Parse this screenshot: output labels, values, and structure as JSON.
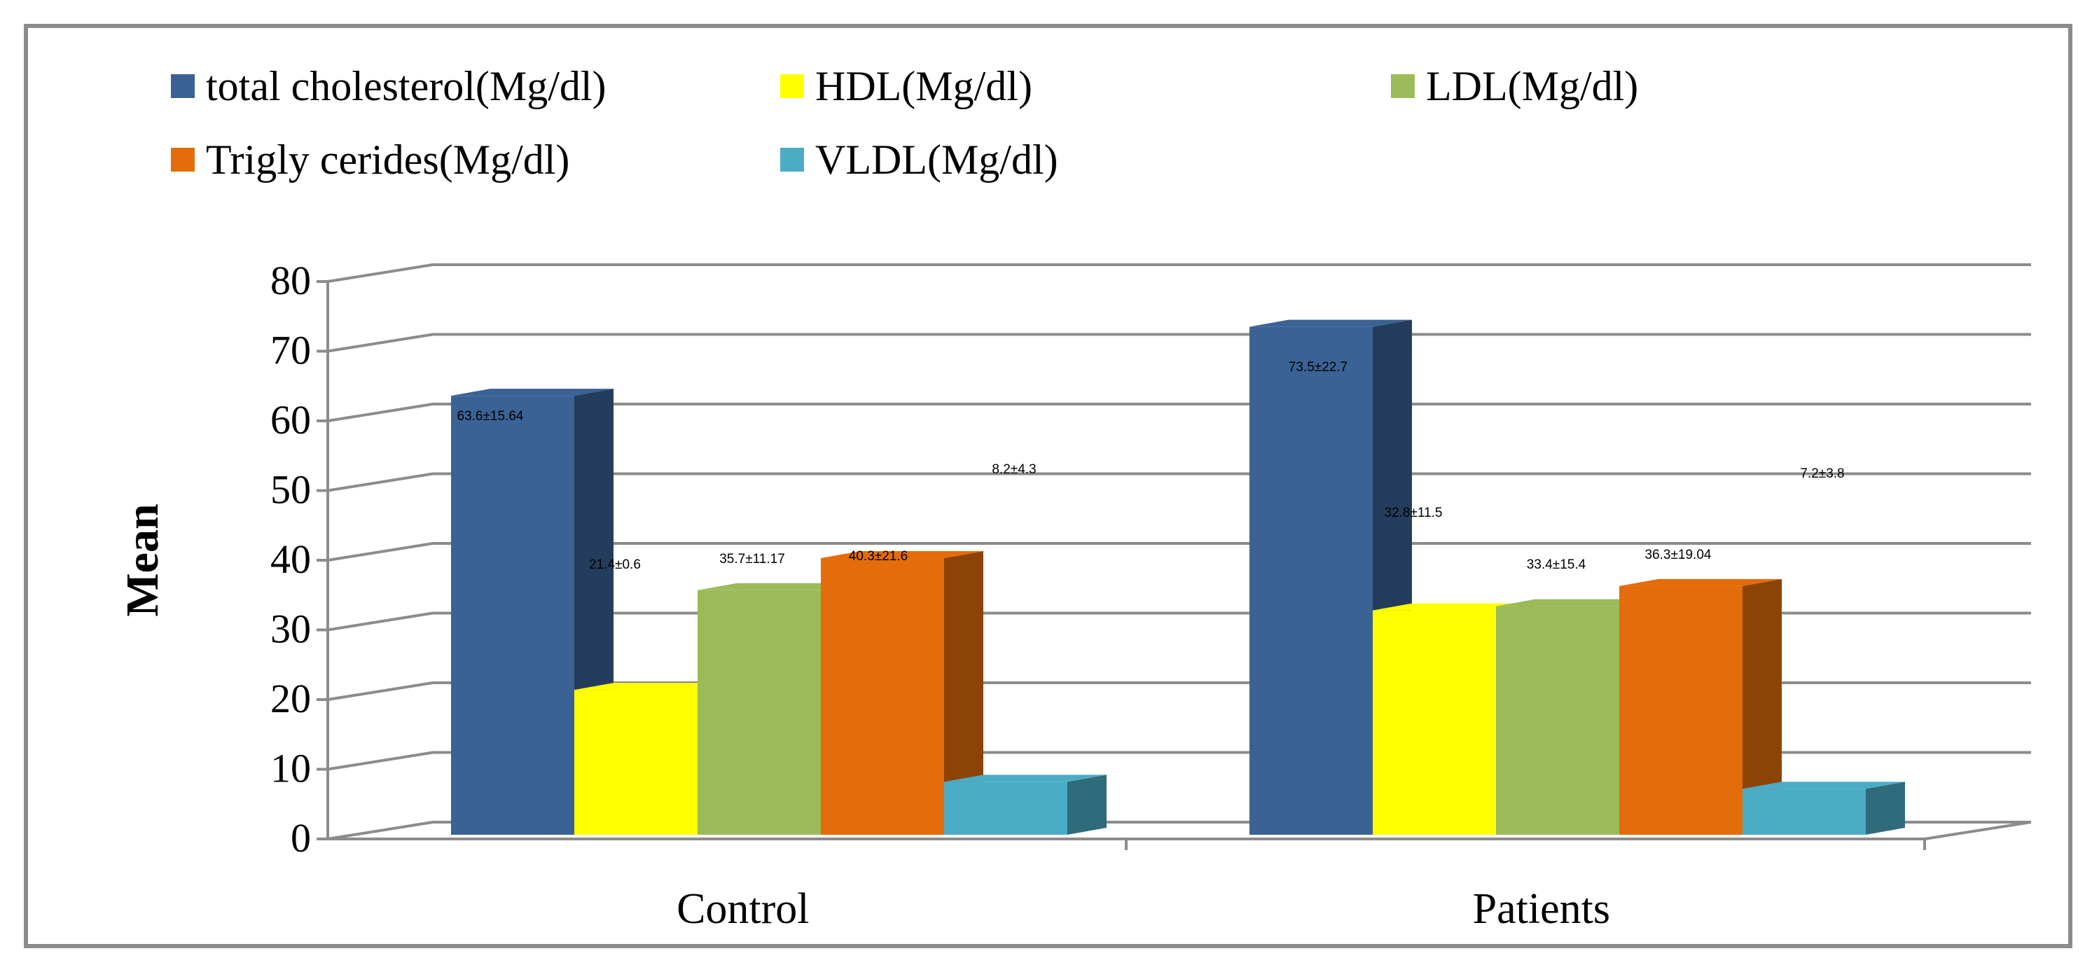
{
  "chart_data": {
    "type": "bar",
    "ylabel": "Mean",
    "xlabel": "",
    "ylim": [
      0,
      80
    ],
    "yticks": [
      0,
      10,
      20,
      30,
      40,
      50,
      60,
      70,
      80
    ],
    "categories": [
      "Control",
      "Patients"
    ],
    "grid": true,
    "legend_position": "top",
    "series": [
      {
        "name": "total cholesterol(Mg/dl)",
        "color": "#3A6294",
        "values": [
          63.6,
          73.5
        ],
        "labels": [
          "63.6±15.64",
          "73.5±22.7"
        ]
      },
      {
        "name": "HDL(Mg/dl)",
        "color": "#FFFF00",
        "values": [
          21.4,
          32.8
        ],
        "labels": [
          "21.4±0.6",
          "32.8±11.5"
        ]
      },
      {
        "name": "LDL(Mg/dl)",
        "color": "#9BBB59",
        "values": [
          35.7,
          33.4
        ],
        "labels": [
          "35.7±11.17",
          "33.4±15.4"
        ]
      },
      {
        "name": "Trigly cerides(Mg/dl)",
        "color": "#E46C0A",
        "values": [
          40.3,
          36.3
        ],
        "labels": [
          "40.3±21.6",
          "36.3±19.04"
        ]
      },
      {
        "name": "VLDL(Mg/dl)",
        "color": "#4BACC6",
        "values": [
          8.2,
          7.2
        ],
        "labels": [
          "8.2±4.3",
          "7.2±3.8"
        ]
      }
    ]
  }
}
